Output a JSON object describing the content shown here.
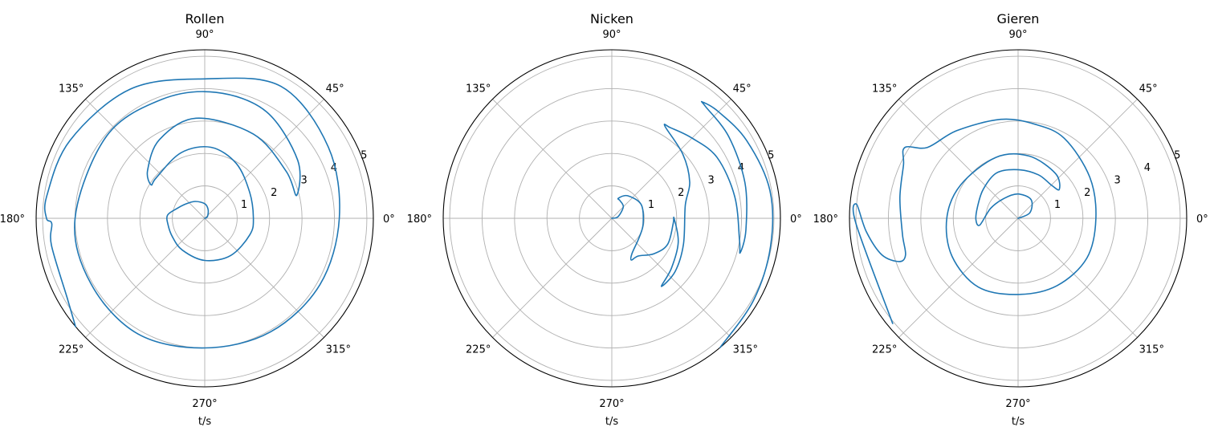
{
  "chart_data": [
    {
      "type": "line",
      "subtype": "polar",
      "title": "Rollen",
      "xlabel": "t/s",
      "angle_ticks": [
        "0°",
        "45°",
        "90°",
        "135°",
        "180°",
        "225°",
        "270°",
        "315°"
      ],
      "radial_ticks": [
        "1",
        "2",
        "3",
        "4",
        "5"
      ],
      "rlim": [
        0,
        5.2
      ],
      "grid": true,
      "series": [
        {
          "color": "#1f77b4",
          "points": [
            {
              "theta_deg": 0,
              "r": 0.0
            },
            {
              "theta_deg": 20,
              "r": 0.05
            },
            {
              "theta_deg": 40,
              "r": 0.12
            },
            {
              "theta_deg": 70,
              "r": 0.3
            },
            {
              "theta_deg": 90,
              "r": 0.45
            },
            {
              "theta_deg": 120,
              "r": 0.6
            },
            {
              "theta_deg": 145,
              "r": 0.75
            },
            {
              "theta_deg": 160,
              "r": 0.9
            },
            {
              "theta_deg": 175,
              "r": 1.15
            },
            {
              "theta_deg": 190,
              "r": 1.15
            },
            {
              "theta_deg": 210,
              "r": 1.15
            },
            {
              "theta_deg": 235,
              "r": 1.2
            },
            {
              "theta_deg": 270,
              "r": 1.3
            },
            {
              "theta_deg": 305,
              "r": 1.4
            },
            {
              "theta_deg": 340,
              "r": 1.48
            },
            {
              "theta_deg": 360,
              "r": 1.5
            },
            {
              "theta_deg": 390,
              "r": 1.6
            },
            {
              "theta_deg": 420,
              "r": 1.95
            },
            {
              "theta_deg": 445,
              "r": 2.2
            },
            {
              "theta_deg": 470,
              "r": 2.15
            },
            {
              "theta_deg": 500,
              "r": 1.95
            },
            {
              "theta_deg": 508,
              "r": 1.95
            },
            {
              "theta_deg": 500,
              "r": 2.3
            },
            {
              "theta_deg": 480,
              "r": 2.8
            },
            {
              "theta_deg": 455,
              "r": 3.1
            },
            {
              "theta_deg": 420,
              "r": 3.0
            },
            {
              "theta_deg": 390,
              "r": 2.9
            },
            {
              "theta_deg": 374,
              "r": 2.92
            },
            {
              "theta_deg": 392,
              "r": 3.38
            },
            {
              "theta_deg": 420,
              "r": 3.8
            },
            {
              "theta_deg": 445,
              "r": 3.9
            },
            {
              "theta_deg": 470,
              "r": 3.9
            },
            {
              "theta_deg": 500,
              "r": 3.95
            },
            {
              "theta_deg": 540,
              "r": 4.0
            },
            {
              "theta_deg": 570,
              "r": 4.05
            },
            {
              "theta_deg": 600,
              "r": 4.12
            },
            {
              "theta_deg": 630,
              "r": 4.0
            },
            {
              "theta_deg": 660,
              "r": 4.05
            },
            {
              "theta_deg": 690,
              "r": 4.1
            },
            {
              "theta_deg": 720,
              "r": 4.15
            },
            {
              "theta_deg": 750,
              "r": 4.4
            },
            {
              "theta_deg": 780,
              "r": 4.7
            },
            {
              "theta_deg": 810,
              "r": 4.3
            },
            {
              "theta_deg": 840,
              "r": 4.6
            },
            {
              "theta_deg": 870,
              "r": 4.8
            },
            {
              "theta_deg": 892,
              "r": 4.92
            },
            {
              "theta_deg": 900,
              "r": 4.88
            },
            {
              "theta_deg": 902,
              "r": 4.72
            },
            {
              "theta_deg": 910,
              "r": 4.8
            },
            {
              "theta_deg": 930,
              "r": 4.9
            },
            {
              "theta_deg": 940,
              "r": 5.2
            }
          ]
        }
      ]
    },
    {
      "type": "line",
      "subtype": "polar",
      "title": "Nicken",
      "xlabel": "t/s",
      "angle_ticks": [
        "0°",
        "45°",
        "90°",
        "135°",
        "180°",
        "225°",
        "270°",
        "315°"
      ],
      "radial_ticks": [
        "1",
        "2",
        "3",
        "4",
        "5"
      ],
      "rlim": [
        0,
        5.2
      ],
      "grid": true,
      "series": [
        {
          "color": "#1f77b4",
          "points": [
            {
              "theta_deg": 0,
              "r": 0.0
            },
            {
              "theta_deg": 15,
              "r": 0.2
            },
            {
              "theta_deg": 45,
              "r": 0.5
            },
            {
              "theta_deg": 65,
              "r": 0.6
            },
            {
              "theta_deg": 72,
              "r": 0.65
            },
            {
              "theta_deg": 55,
              "r": 0.85
            },
            {
              "theta_deg": 25,
              "r": 1.0
            },
            {
              "theta_deg": -10,
              "r": 0.98
            },
            {
              "theta_deg": -35,
              "r": 1.03
            },
            {
              "theta_deg": -60,
              "r": 1.25
            },
            {
              "theta_deg": -65,
              "r": 1.42
            },
            {
              "theta_deg": -55,
              "r": 1.42
            },
            {
              "theta_deg": -40,
              "r": 1.7
            },
            {
              "theta_deg": -25,
              "r": 1.9
            },
            {
              "theta_deg": -5,
              "r": 1.9
            },
            {
              "theta_deg": 0,
              "r": 1.92
            },
            {
              "theta_deg": -20,
              "r": 2.18
            },
            {
              "theta_deg": -40,
              "r": 2.4
            },
            {
              "theta_deg": -54,
              "r": 2.6
            },
            {
              "theta_deg": -40,
              "r": 2.55
            },
            {
              "theta_deg": -20,
              "r": 2.35
            },
            {
              "theta_deg": 10,
              "r": 2.3
            },
            {
              "theta_deg": 25,
              "r": 2.65
            },
            {
              "theta_deg": 42,
              "r": 2.95
            },
            {
              "theta_deg": 60,
              "r": 3.28
            },
            {
              "theta_deg": 57,
              "r": 3.33
            },
            {
              "theta_deg": 45,
              "r": 3.5
            },
            {
              "theta_deg": 30,
              "r": 3.75
            },
            {
              "theta_deg": 10,
              "r": 3.85
            },
            {
              "theta_deg": -10,
              "r": 4.0
            },
            {
              "theta_deg": -15,
              "r": 4.1
            },
            {
              "theta_deg": -5,
              "r": 4.15
            },
            {
              "theta_deg": 15,
              "r": 4.25
            },
            {
              "theta_deg": 35,
              "r": 4.4
            },
            {
              "theta_deg": 50,
              "r": 4.5
            },
            {
              "theta_deg": 52,
              "r": 4.55
            },
            {
              "theta_deg": 45,
              "r": 4.65
            },
            {
              "theta_deg": 30,
              "r": 4.8
            },
            {
              "theta_deg": 10,
              "r": 4.95
            },
            {
              "theta_deg": -10,
              "r": 4.97
            },
            {
              "theta_deg": -30,
              "r": 5.05
            },
            {
              "theta_deg": -50,
              "r": 5.2
            }
          ]
        }
      ]
    },
    {
      "type": "line",
      "subtype": "polar",
      "title": "Gieren",
      "xlabel": "t/s",
      "angle_ticks": [
        "0°",
        "45°",
        "90°",
        "135°",
        "180°",
        "225°",
        "270°",
        "315°"
      ],
      "radial_ticks": [
        "1",
        "2",
        "3",
        "4",
        "5"
      ],
      "rlim": [
        0,
        5.2
      ],
      "grid": true,
      "series": [
        {
          "color": "#1f77b4",
          "points": [
            {
              "theta_deg": 0,
              "r": 0.0
            },
            {
              "theta_deg": 25,
              "r": 0.4
            },
            {
              "theta_deg": 55,
              "r": 0.7
            },
            {
              "theta_deg": 90,
              "r": 0.75
            },
            {
              "theta_deg": 125,
              "r": 0.75
            },
            {
              "theta_deg": 160,
              "r": 0.9
            },
            {
              "theta_deg": 190,
              "r": 1.2
            },
            {
              "theta_deg": 182,
              "r": 1.3
            },
            {
              "theta_deg": 165,
              "r": 1.3
            },
            {
              "theta_deg": 140,
              "r": 1.4
            },
            {
              "theta_deg": 115,
              "r": 1.55
            },
            {
              "theta_deg": 90,
              "r": 1.5
            },
            {
              "theta_deg": 65,
              "r": 1.48
            },
            {
              "theta_deg": 45,
              "r": 1.45
            },
            {
              "theta_deg": 35,
              "r": 1.55
            },
            {
              "theta_deg": 50,
              "r": 1.8
            },
            {
              "theta_deg": 80,
              "r": 1.95
            },
            {
              "theta_deg": 110,
              "r": 2.0
            },
            {
              "theta_deg": 150,
              "r": 2.05
            },
            {
              "theta_deg": 180,
              "r": 2.2
            },
            {
              "theta_deg": 210,
              "r": 2.35
            },
            {
              "theta_deg": 240,
              "r": 2.45
            },
            {
              "theta_deg": 270,
              "r": 2.35
            },
            {
              "theta_deg": 300,
              "r": 2.4
            },
            {
              "theta_deg": 330,
              "r": 2.45
            },
            {
              "theta_deg": 360,
              "r": 2.4
            },
            {
              "theta_deg": 390,
              "r": 2.55
            },
            {
              "theta_deg": 420,
              "r": 2.85
            },
            {
              "theta_deg": 440,
              "r": 2.95
            },
            {
              "theta_deg": 460,
              "r": 3.1
            },
            {
              "theta_deg": 485,
              "r": 3.3
            },
            {
              "theta_deg": 502,
              "r": 3.55
            },
            {
              "theta_deg": 508,
              "r": 4.12
            },
            {
              "theta_deg": 515,
              "r": 3.9
            },
            {
              "theta_deg": 530,
              "r": 3.7
            },
            {
              "theta_deg": 548,
              "r": 3.6
            },
            {
              "theta_deg": 558,
              "r": 3.65
            },
            {
              "theta_deg": 560,
              "r": 3.9
            },
            {
              "theta_deg": 555,
              "r": 4.35
            },
            {
              "theta_deg": 545,
              "r": 4.7
            },
            {
              "theta_deg": 535,
              "r": 5.0
            },
            {
              "theta_deg": 542,
              "r": 5.0
            },
            {
              "theta_deg": 580,
              "r": 5.05
            }
          ]
        }
      ]
    }
  ]
}
